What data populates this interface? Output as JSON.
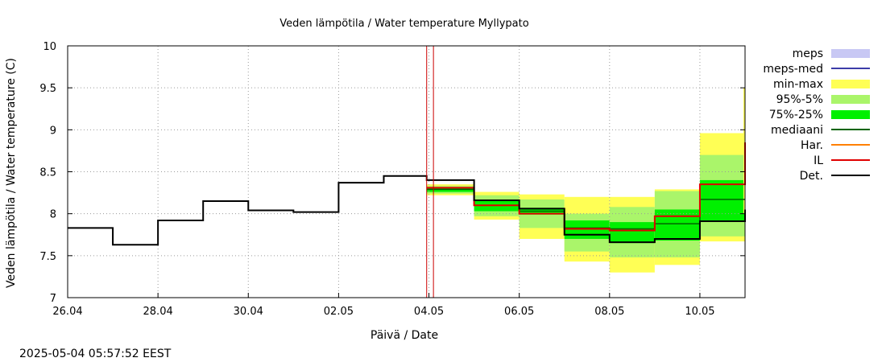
{
  "chart_data": {
    "type": "line",
    "title": "Veden lämpötila / Water temperature Myllypato",
    "xlabel": "Päivä / Date",
    "ylabel": "Veden lämpötila / Water temperature (C)",
    "timestamp": "2025-05-04 05:57:52 EEST",
    "x_range_days": [
      0,
      15
    ],
    "ylim": [
      7,
      10
    ],
    "grid": true,
    "legend_position": "top-right, outside plot",
    "now_day": 8.1,
    "forecast_start_day": 7.95,
    "x_ticks": [
      {
        "day": 0,
        "label": "26.04"
      },
      {
        "day": 2,
        "label": "28.04"
      },
      {
        "day": 4,
        "label": "30.04"
      },
      {
        "day": 6,
        "label": "02.05"
      },
      {
        "day": 8,
        "label": "04.05"
      },
      {
        "day": 10,
        "label": "06.05"
      },
      {
        "day": 12,
        "label": "08.05"
      },
      {
        "day": 14,
        "label": "10.05"
      }
    ],
    "y_ticks": [
      {
        "value": 7,
        "label": "7"
      },
      {
        "value": 7.5,
        "label": "7.5"
      },
      {
        "value": 8,
        "label": "8"
      },
      {
        "value": 8.5,
        "label": "8.5"
      },
      {
        "value": 9,
        "label": "9"
      },
      {
        "value": 9.5,
        "label": "9.5"
      },
      {
        "value": 10,
        "label": "10"
      }
    ],
    "legend": [
      {
        "key": "meps",
        "label": "meps",
        "kind": "band",
        "color": "#c8c8f4"
      },
      {
        "key": "meps_med",
        "label": "meps-med",
        "kind": "line",
        "color": "#3c3ca8"
      },
      {
        "key": "minmax",
        "label": "min-max",
        "kind": "band",
        "color": "#ffff55"
      },
      {
        "key": "p95_5",
        "label": "95%-5%",
        "kind": "band",
        "color": "#aaf56a"
      },
      {
        "key": "p75_25",
        "label": "75%-25%",
        "kind": "band",
        "color": "#00f000"
      },
      {
        "key": "median",
        "label": "mediaani",
        "kind": "line",
        "color": "#006400"
      },
      {
        "key": "har",
        "label": "Har.",
        "kind": "line",
        "color": "#ff8000"
      },
      {
        "key": "il",
        "label": "IL",
        "kind": "line",
        "color": "#e00000"
      },
      {
        "key": "det",
        "label": "Det.",
        "kind": "line",
        "color": "#000000"
      }
    ],
    "observed_det": [
      {
        "from": 0.0,
        "to": 1.0,
        "value": 7.83
      },
      {
        "from": 1.0,
        "to": 2.0,
        "value": 7.63
      },
      {
        "from": 2.0,
        "to": 3.0,
        "value": 7.92
      },
      {
        "from": 3.0,
        "to": 4.0,
        "value": 8.15
      },
      {
        "from": 4.0,
        "to": 5.0,
        "value": 8.04
      },
      {
        "from": 5.0,
        "to": 6.0,
        "value": 8.02
      },
      {
        "from": 6.0,
        "to": 7.0,
        "value": 8.37
      },
      {
        "from": 7.0,
        "to": 7.95,
        "value": 8.45
      }
    ],
    "forecast": [
      {
        "from": 7.95,
        "to": 9.0,
        "minmax": [
          8.22,
          8.35
        ],
        "p95_5": [
          8.24,
          8.33
        ],
        "p75_25": [
          8.26,
          8.31
        ],
        "median": 8.29,
        "il": 8.31,
        "det": 8.4
      },
      {
        "from": 9.0,
        "to": 10.0,
        "minmax": [
          7.93,
          8.26
        ],
        "p95_5": [
          7.97,
          8.22
        ],
        "p75_25": [
          8.03,
          8.16
        ],
        "median": 8.1,
        "il": 8.1,
        "det": 8.16
      },
      {
        "from": 10.0,
        "to": 11.0,
        "minmax": [
          7.7,
          8.23
        ],
        "p95_5": [
          7.83,
          8.17
        ],
        "p75_25": [
          7.99,
          8.07
        ],
        "median": 8.03,
        "il": 8.0,
        "det": 8.06
      },
      {
        "from": 11.0,
        "to": 12.0,
        "minmax": [
          7.43,
          8.2
        ],
        "p95_5": [
          7.55,
          8.0
        ],
        "p75_25": [
          7.7,
          7.92
        ],
        "median": 7.83,
        "il": 7.82,
        "det": 7.75
      },
      {
        "from": 12.0,
        "to": 13.0,
        "minmax": [
          7.3,
          8.2
        ],
        "p95_5": [
          7.48,
          8.08
        ],
        "p75_25": [
          7.65,
          7.9
        ],
        "median": 7.82,
        "il": 7.8,
        "det": 7.66
      },
      {
        "from": 13.0,
        "to": 14.0,
        "minmax": [
          7.39,
          8.29
        ],
        "p95_5": [
          7.48,
          8.27
        ],
        "p75_25": [
          7.68,
          8.05
        ],
        "median": 7.88,
        "il": 7.97,
        "det": 7.7
      },
      {
        "from": 14.0,
        "to": 15.0,
        "minmax": [
          7.67,
          8.96
        ],
        "p95_5": [
          7.73,
          8.7
        ],
        "p75_25": [
          7.92,
          8.4
        ],
        "median": 8.17,
        "il": 8.35,
        "det": 7.91
      }
    ],
    "forecast_end_tail": {
      "day": 15.0,
      "minmax_top": 9.5,
      "il": 8.85,
      "det": 8.05
    }
  }
}
